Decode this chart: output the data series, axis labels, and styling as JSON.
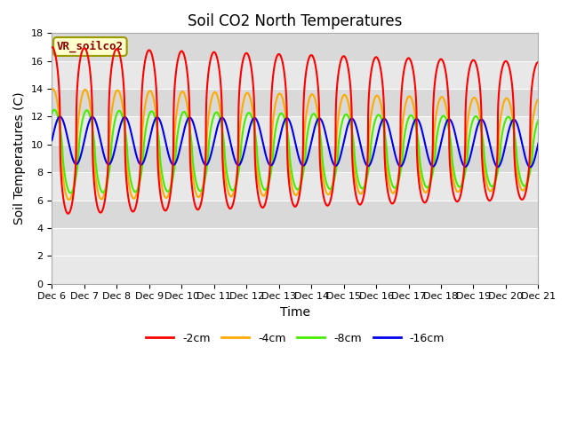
{
  "title": "Soil CO2 North Temperatures",
  "xlabel": "Time",
  "ylabel": "Soil Temperatures (C)",
  "annotation": "VR_soilco2",
  "legend_labels": [
    "-2cm",
    "-4cm",
    "-8cm",
    "-16cm"
  ],
  "legend_colors": [
    "#ff0000",
    "#ffaa00",
    "#44ee00",
    "#0000ee"
  ],
  "ylim": [
    0,
    18
  ],
  "background_color": "#ffffff",
  "plot_bg_color": "#e8e8e8",
  "strip_color": "#d0d0d0",
  "title_fontsize": 12,
  "axis_label_fontsize": 10,
  "tick_fontsize": 8,
  "yticks": [
    0,
    2,
    4,
    6,
    8,
    10,
    12,
    14,
    16,
    18
  ],
  "tick_labels_x": [
    "Dec 6",
    "Dec 7",
    "Dec 8",
    "Dec 9",
    "Dec 10",
    "Dec 11",
    "Dec 12",
    "Dec 13",
    "Dec 14",
    "Dec 15",
    "Dec 16",
    "Dec 17",
    "Dec 18",
    "Dec 19",
    "Dec 20",
    "Dec 21"
  ]
}
